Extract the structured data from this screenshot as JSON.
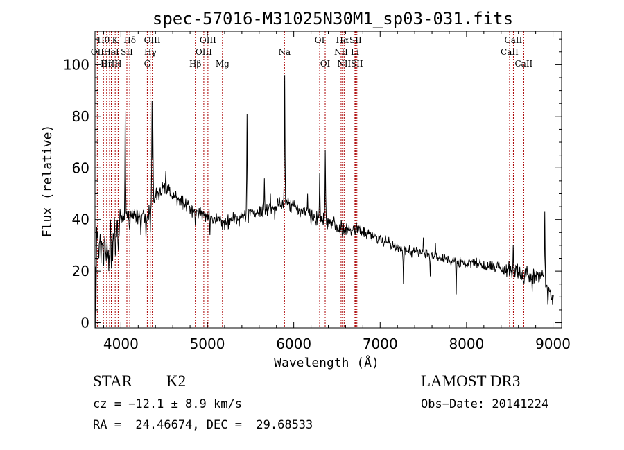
{
  "chart_data": {
    "type": "line",
    "title": "spec-57016-M31025N30M1_sp03-031.fits",
    "xlabel": "Wavelength (Å)",
    "ylabel": "Flux (relative)",
    "xlim": [
      3700,
      9100
    ],
    "ylim": [
      -2,
      113
    ],
    "x_ticks": [
      4000,
      5000,
      6000,
      7000,
      8000,
      9000
    ],
    "y_ticks": [
      0,
      20,
      40,
      60,
      80,
      100
    ],
    "grid": false,
    "line_color": "#000000",
    "marker_color": "#aa0000",
    "continuum": [
      [
        3705,
        30
      ],
      [
        3730,
        33
      ],
      [
        3760,
        31
      ],
      [
        3800,
        30
      ],
      [
        3850,
        29
      ],
      [
        3900,
        33
      ],
      [
        3950,
        35
      ],
      [
        4000,
        40
      ],
      [
        4050,
        42
      ],
      [
        4100,
        41
      ],
      [
        4150,
        42
      ],
      [
        4200,
        41
      ],
      [
        4250,
        42
      ],
      [
        4300,
        41
      ],
      [
        4350,
        45
      ],
      [
        4400,
        49
      ],
      [
        4450,
        51
      ],
      [
        4500,
        53
      ],
      [
        4550,
        51
      ],
      [
        4600,
        49
      ],
      [
        4700,
        47
      ],
      [
        4800,
        44
      ],
      [
        4900,
        43
      ],
      [
        5000,
        42
      ],
      [
        5100,
        40
      ],
      [
        5200,
        39
      ],
      [
        5300,
        40
      ],
      [
        5400,
        41
      ],
      [
        5500,
        42
      ],
      [
        5600,
        43
      ],
      [
        5700,
        44
      ],
      [
        5800,
        45
      ],
      [
        5900,
        47
      ],
      [
        5950,
        46
      ],
      [
        6000,
        46
      ],
      [
        6100,
        43
      ],
      [
        6200,
        41
      ],
      [
        6300,
        40
      ],
      [
        6400,
        39
      ],
      [
        6500,
        38
      ],
      [
        6600,
        37
      ],
      [
        6700,
        36
      ],
      [
        6800,
        35
      ],
      [
        6900,
        34
      ],
      [
        7000,
        32
      ],
      [
        7100,
        31
      ],
      [
        7200,
        29
      ],
      [
        7300,
        28
      ],
      [
        7400,
        28
      ],
      [
        7500,
        27
      ],
      [
        7600,
        26
      ],
      [
        7700,
        25
      ],
      [
        7800,
        24
      ],
      [
        7900,
        24
      ],
      [
        8000,
        23
      ],
      [
        8100,
        23
      ],
      [
        8200,
        22
      ],
      [
        8300,
        22
      ],
      [
        8400,
        21
      ],
      [
        8500,
        20
      ],
      [
        8600,
        19
      ],
      [
        8700,
        18
      ],
      [
        8800,
        18
      ],
      [
        8850,
        19
      ],
      [
        8900,
        17
      ],
      [
        8950,
        13
      ],
      [
        9000,
        10
      ]
    ],
    "features": [
      [
        3712,
        -2
      ],
      [
        3745,
        25
      ],
      [
        3770,
        23
      ],
      [
        3800,
        22
      ],
      [
        3830,
        24
      ],
      [
        3860,
        20
      ],
      [
        3890,
        21
      ],
      [
        3905,
        24
      ],
      [
        3935,
        26
      ],
      [
        3968,
        28
      ],
      [
        4050,
        82
      ],
      [
        4102,
        36
      ],
      [
        4230,
        34
      ],
      [
        4290,
        33
      ],
      [
        4340,
        35
      ],
      [
        4360,
        86
      ],
      [
        4372,
        76
      ],
      [
        4520,
        59
      ],
      [
        4861,
        38
      ],
      [
        5030,
        34
      ],
      [
        5175,
        36
      ],
      [
        5460,
        81
      ],
      [
        5660,
        56
      ],
      [
        5730,
        50
      ],
      [
        5780,
        40
      ],
      [
        5893,
        96
      ],
      [
        6160,
        50
      ],
      [
        6300,
        58
      ],
      [
        6365,
        67
      ],
      [
        6563,
        33
      ],
      [
        6708,
        34
      ],
      [
        7270,
        15
      ],
      [
        7500,
        33
      ],
      [
        7580,
        18
      ],
      [
        7640,
        31
      ],
      [
        7880,
        11
      ],
      [
        8540,
        30
      ],
      [
        8680,
        21
      ],
      [
        8760,
        12
      ],
      [
        8840,
        16
      ],
      [
        8905,
        43
      ],
      [
        8940,
        7
      ],
      [
        8985,
        9
      ]
    ],
    "lines": [
      {
        "label": "Hθ",
        "wavelength": 3798,
        "row": 1
      },
      {
        "label": "OII",
        "wavelength": 3727,
        "row": 2
      },
      {
        "label": "OIII",
        "wavelength": 3869,
        "row": 3
      },
      {
        "label": "K",
        "wavelength": 3934,
        "row": 1
      },
      {
        "label": "HeI",
        "wavelength": 3889,
        "row": 2
      },
      {
        "label": "Hη",
        "wavelength": 3835,
        "row": 3
      },
      {
        "label": "SII",
        "wavelength": 4069,
        "row": 2
      },
      {
        "label": "H",
        "wavelength": 3968,
        "row": 3
      },
      {
        "label": "Hδ",
        "wavelength": 4102,
        "row": 1
      },
      {
        "label": "OIII",
        "wavelength": 4363,
        "row": 1
      },
      {
        "label": "Hγ",
        "wavelength": 4340,
        "row": 2
      },
      {
        "label": "G",
        "wavelength": 4305,
        "row": 3
      },
      {
        "label": "OIII",
        "wavelength": 5007,
        "row": 1
      },
      {
        "label": "OIII",
        "wavelength": 4959,
        "row": 2
      },
      {
        "label": "Hβ",
        "wavelength": 4861,
        "row": 3
      },
      {
        "label": "Mg",
        "wavelength": 5175,
        "row": 3
      },
      {
        "label": "Na",
        "wavelength": 5893,
        "row": 2
      },
      {
        "label": "OI",
        "wavelength": 6300,
        "row": 1
      },
      {
        "label": "OI",
        "wavelength": 6364,
        "row": 3
      },
      {
        "label": "Hα",
        "wavelength": 6563,
        "row": 1
      },
      {
        "label": "NII",
        "wavelength": 6548,
        "row": 2
      },
      {
        "label": "NII",
        "wavelength": 6583,
        "row": 3
      },
      {
        "label": "SII",
        "wavelength": 6716,
        "row": 1
      },
      {
        "label": "Li",
        "wavelength": 6708,
        "row": 2
      },
      {
        "label": "SII",
        "wavelength": 6731,
        "row": 3
      },
      {
        "label": "CaII",
        "wavelength": 8542,
        "row": 1
      },
      {
        "label": "CaII",
        "wavelength": 8498,
        "row": 2
      },
      {
        "label": "CaII",
        "wavelength": 8662,
        "row": 3
      }
    ]
  },
  "footer": {
    "class_label": "STAR",
    "subclass_label": "K2",
    "survey_label": "LAMOST DR3",
    "redshift_text": "cz = −12.1 ± 8.9 km/s",
    "obs_date_text": "Obs−Date: 20141224",
    "coords_text": "RA =  24.46674, DEC =  29.68533"
  }
}
